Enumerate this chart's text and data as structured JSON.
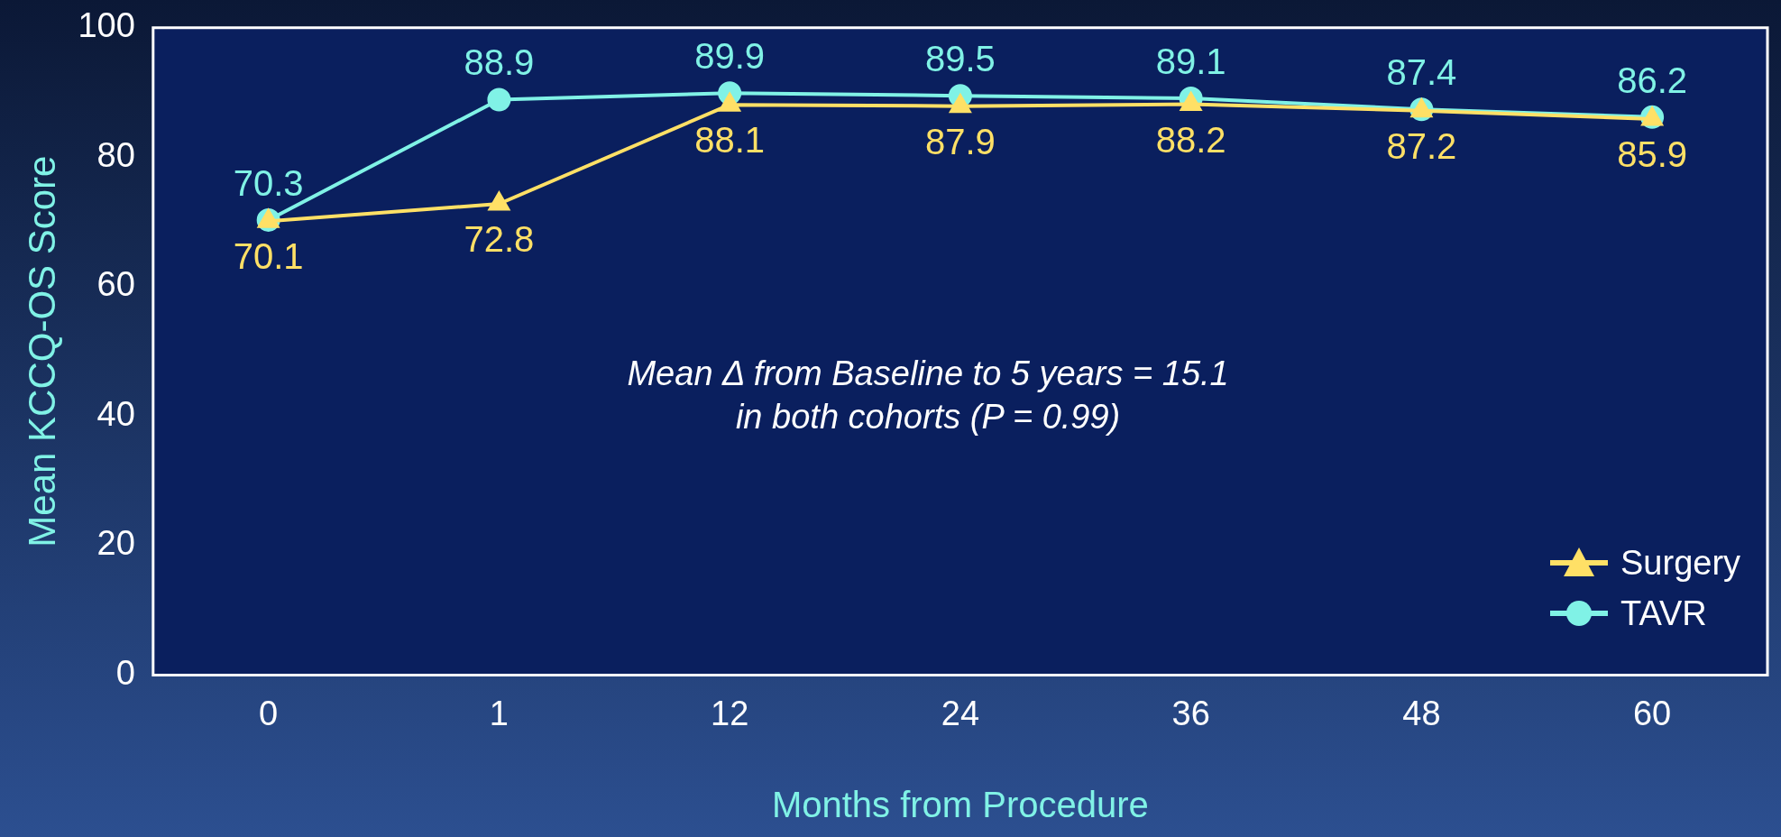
{
  "chart_data": {
    "type": "line",
    "xlabel": "Months from Procedure",
    "ylabel": "Mean KCCQ-OS Score",
    "categories": [
      "0",
      "1",
      "12",
      "24",
      "36",
      "48",
      "60"
    ],
    "series": [
      {
        "name": "Surgery",
        "color": "#ffe066",
        "marker": "triangle",
        "values": [
          70.1,
          72.8,
          88.1,
          87.9,
          88.2,
          87.2,
          85.9
        ]
      },
      {
        "name": "TAVR",
        "color": "#80f2e6",
        "marker": "circle",
        "values": [
          70.3,
          88.9,
          89.9,
          89.5,
          89.1,
          87.4,
          86.2
        ]
      }
    ],
    "ylim": [
      0,
      100
    ],
    "yticks": [
      0,
      20,
      40,
      60,
      80,
      100
    ],
    "grid": false,
    "legend": "bottom right",
    "data_labels": true,
    "annotations": [
      "Mean Δ from Baseline to 5 years = 15.1 in both cohorts (P = 0.99)"
    ]
  }
}
